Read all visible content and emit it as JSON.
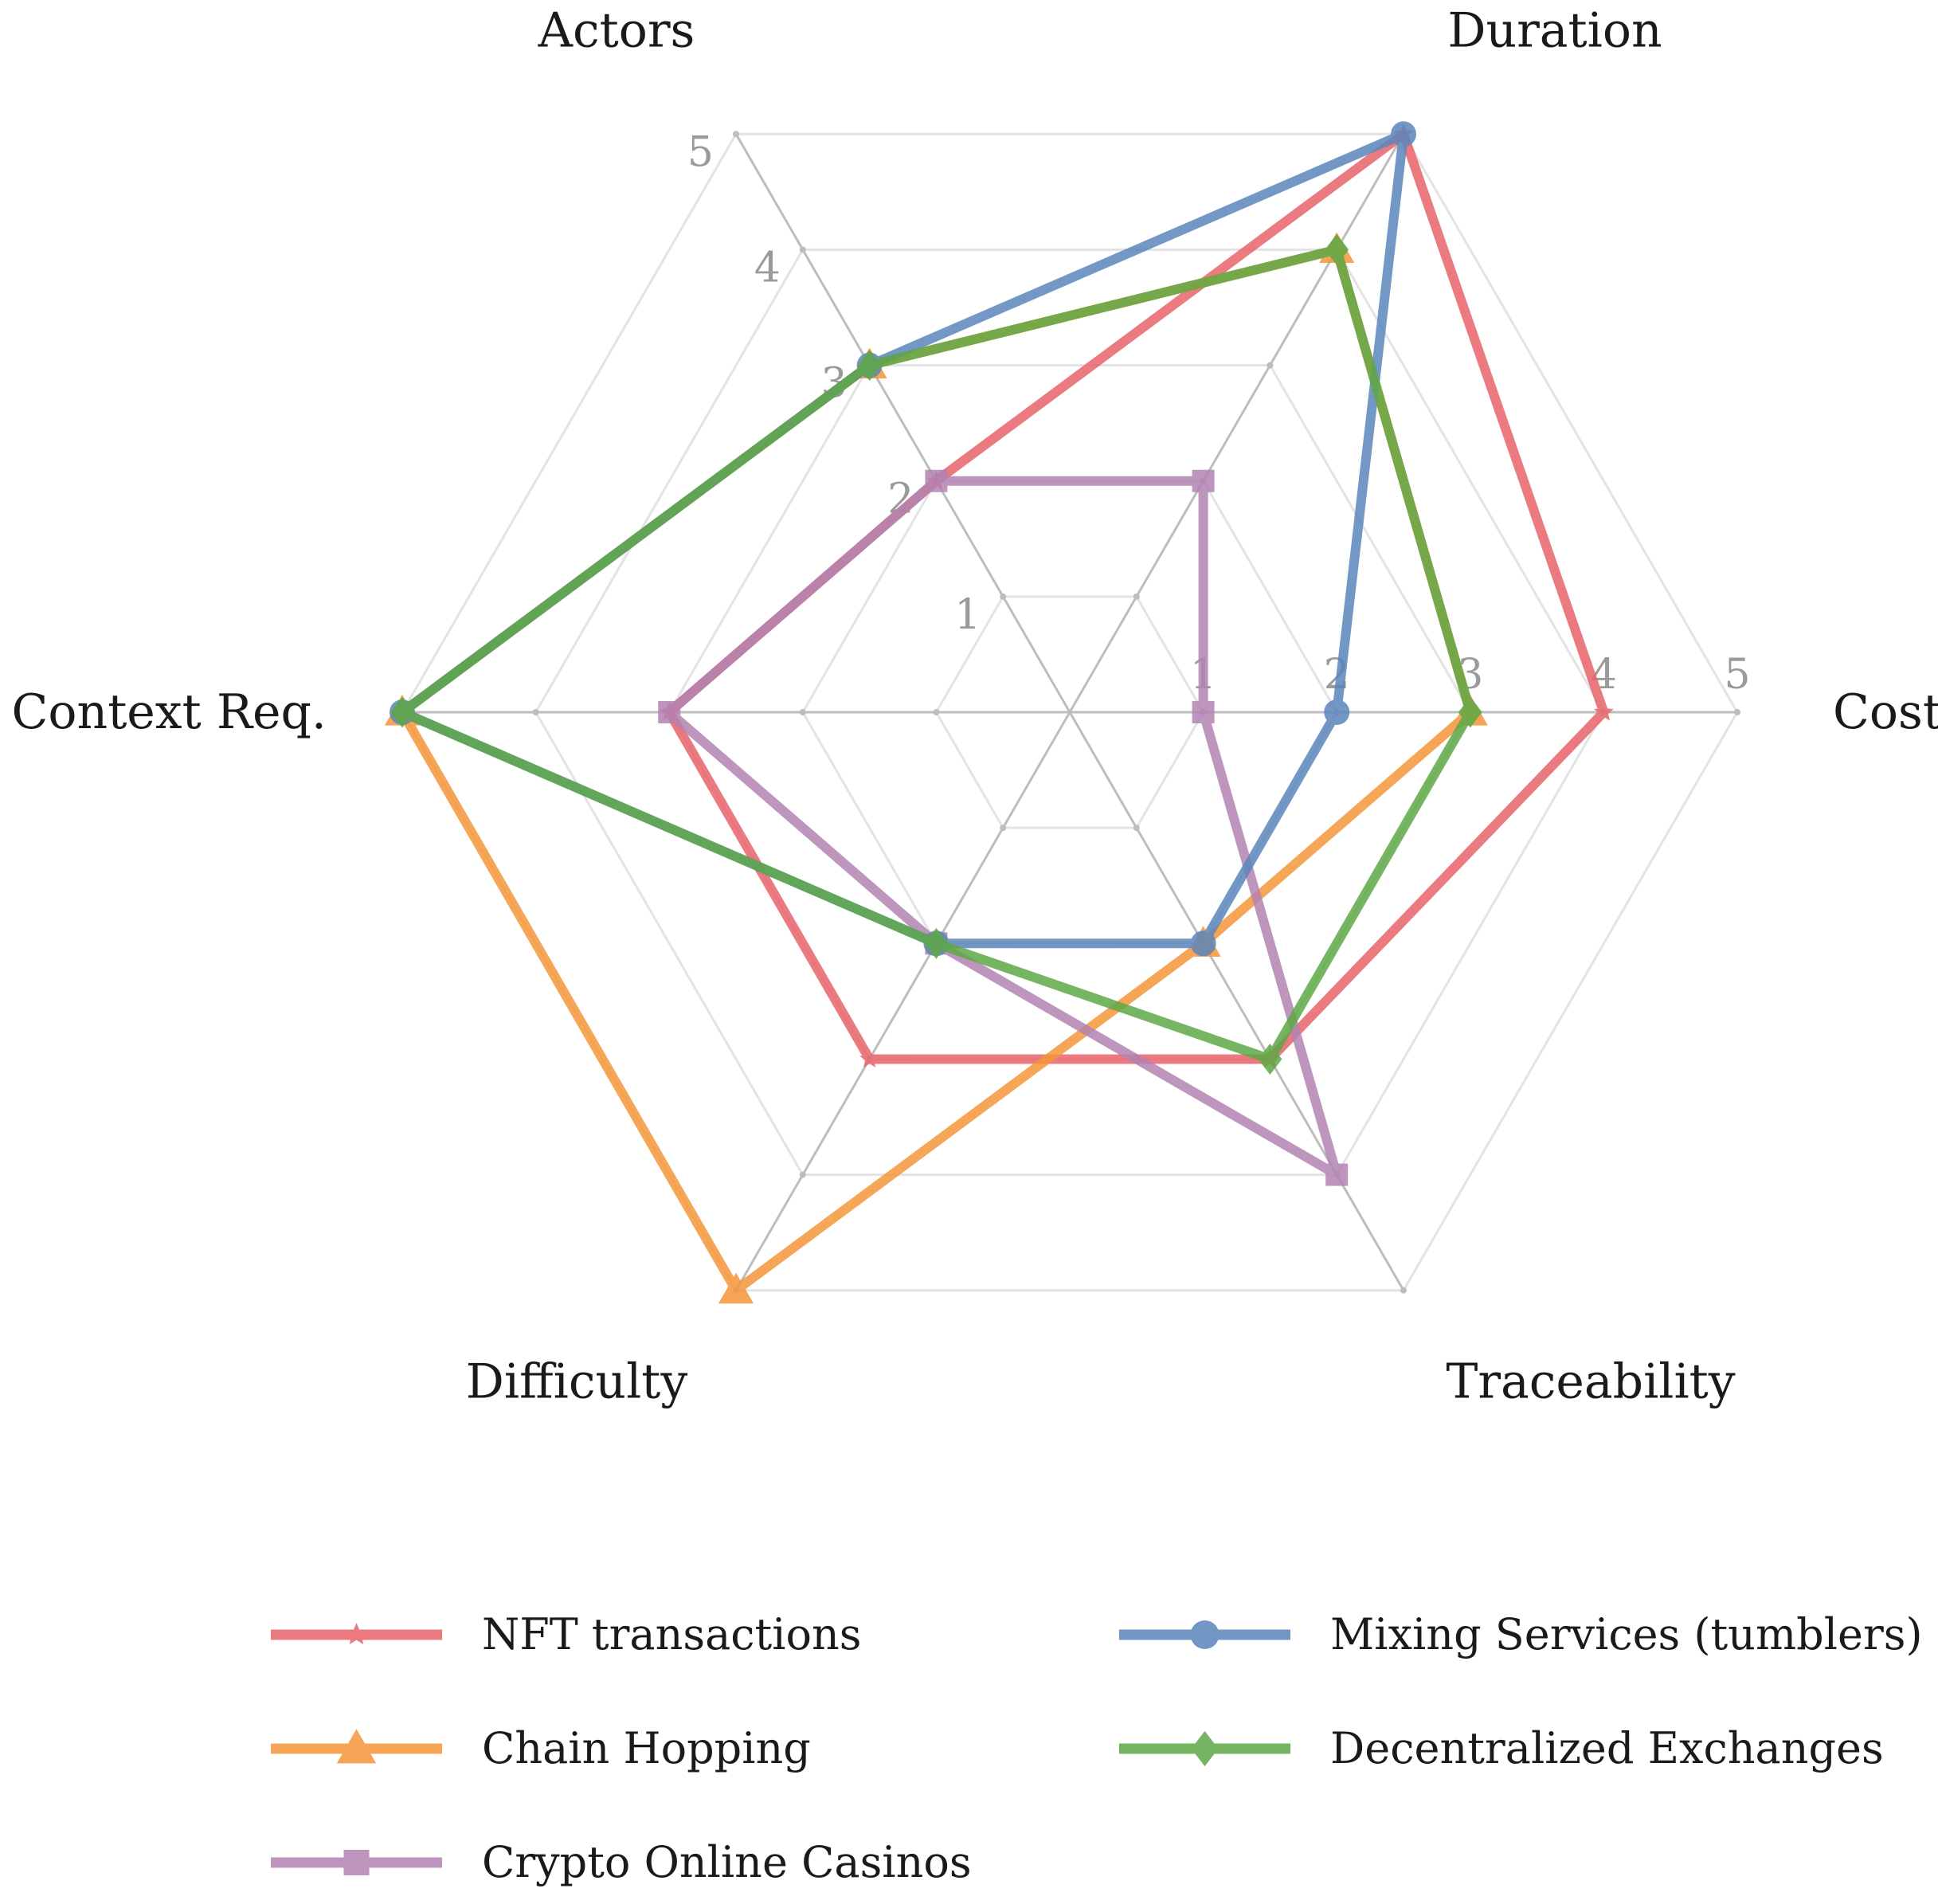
{
  "chart_data": {
    "type": "radar",
    "axes": [
      "Duration",
      "Cost",
      "Traceability",
      "Difficulty",
      "Context Req.",
      "Actors"
    ],
    "ticks": [
      1,
      2,
      3,
      4,
      5
    ],
    "rlim": [
      0,
      5
    ],
    "grid": true,
    "legend_position": "bottom",
    "series": [
      {
        "name": "NFT transactions",
        "color": "#e8636b",
        "marker": "star",
        "values": [
          5,
          4,
          3,
          3,
          3,
          2
        ]
      },
      {
        "name": "Chain Hopping",
        "color": "#f5963a",
        "marker": "triangle",
        "values": [
          4,
          3,
          2,
          5,
          5,
          3
        ]
      },
      {
        "name": "Crypto Online Casinos",
        "color": "#b283b2",
        "marker": "square",
        "values": [
          2,
          1,
          4,
          2,
          3,
          2
        ]
      },
      {
        "name": "Mixing Services (tumblers)",
        "color": "#5b86bb",
        "marker": "circle",
        "values": [
          5,
          2,
          2,
          2,
          5,
          3
        ]
      },
      {
        "name": "Decentralized Exchanges",
        "color": "#5ea845",
        "marker": "diamond",
        "values": [
          4,
          3,
          3,
          2,
          5,
          3
        ]
      }
    ]
  }
}
